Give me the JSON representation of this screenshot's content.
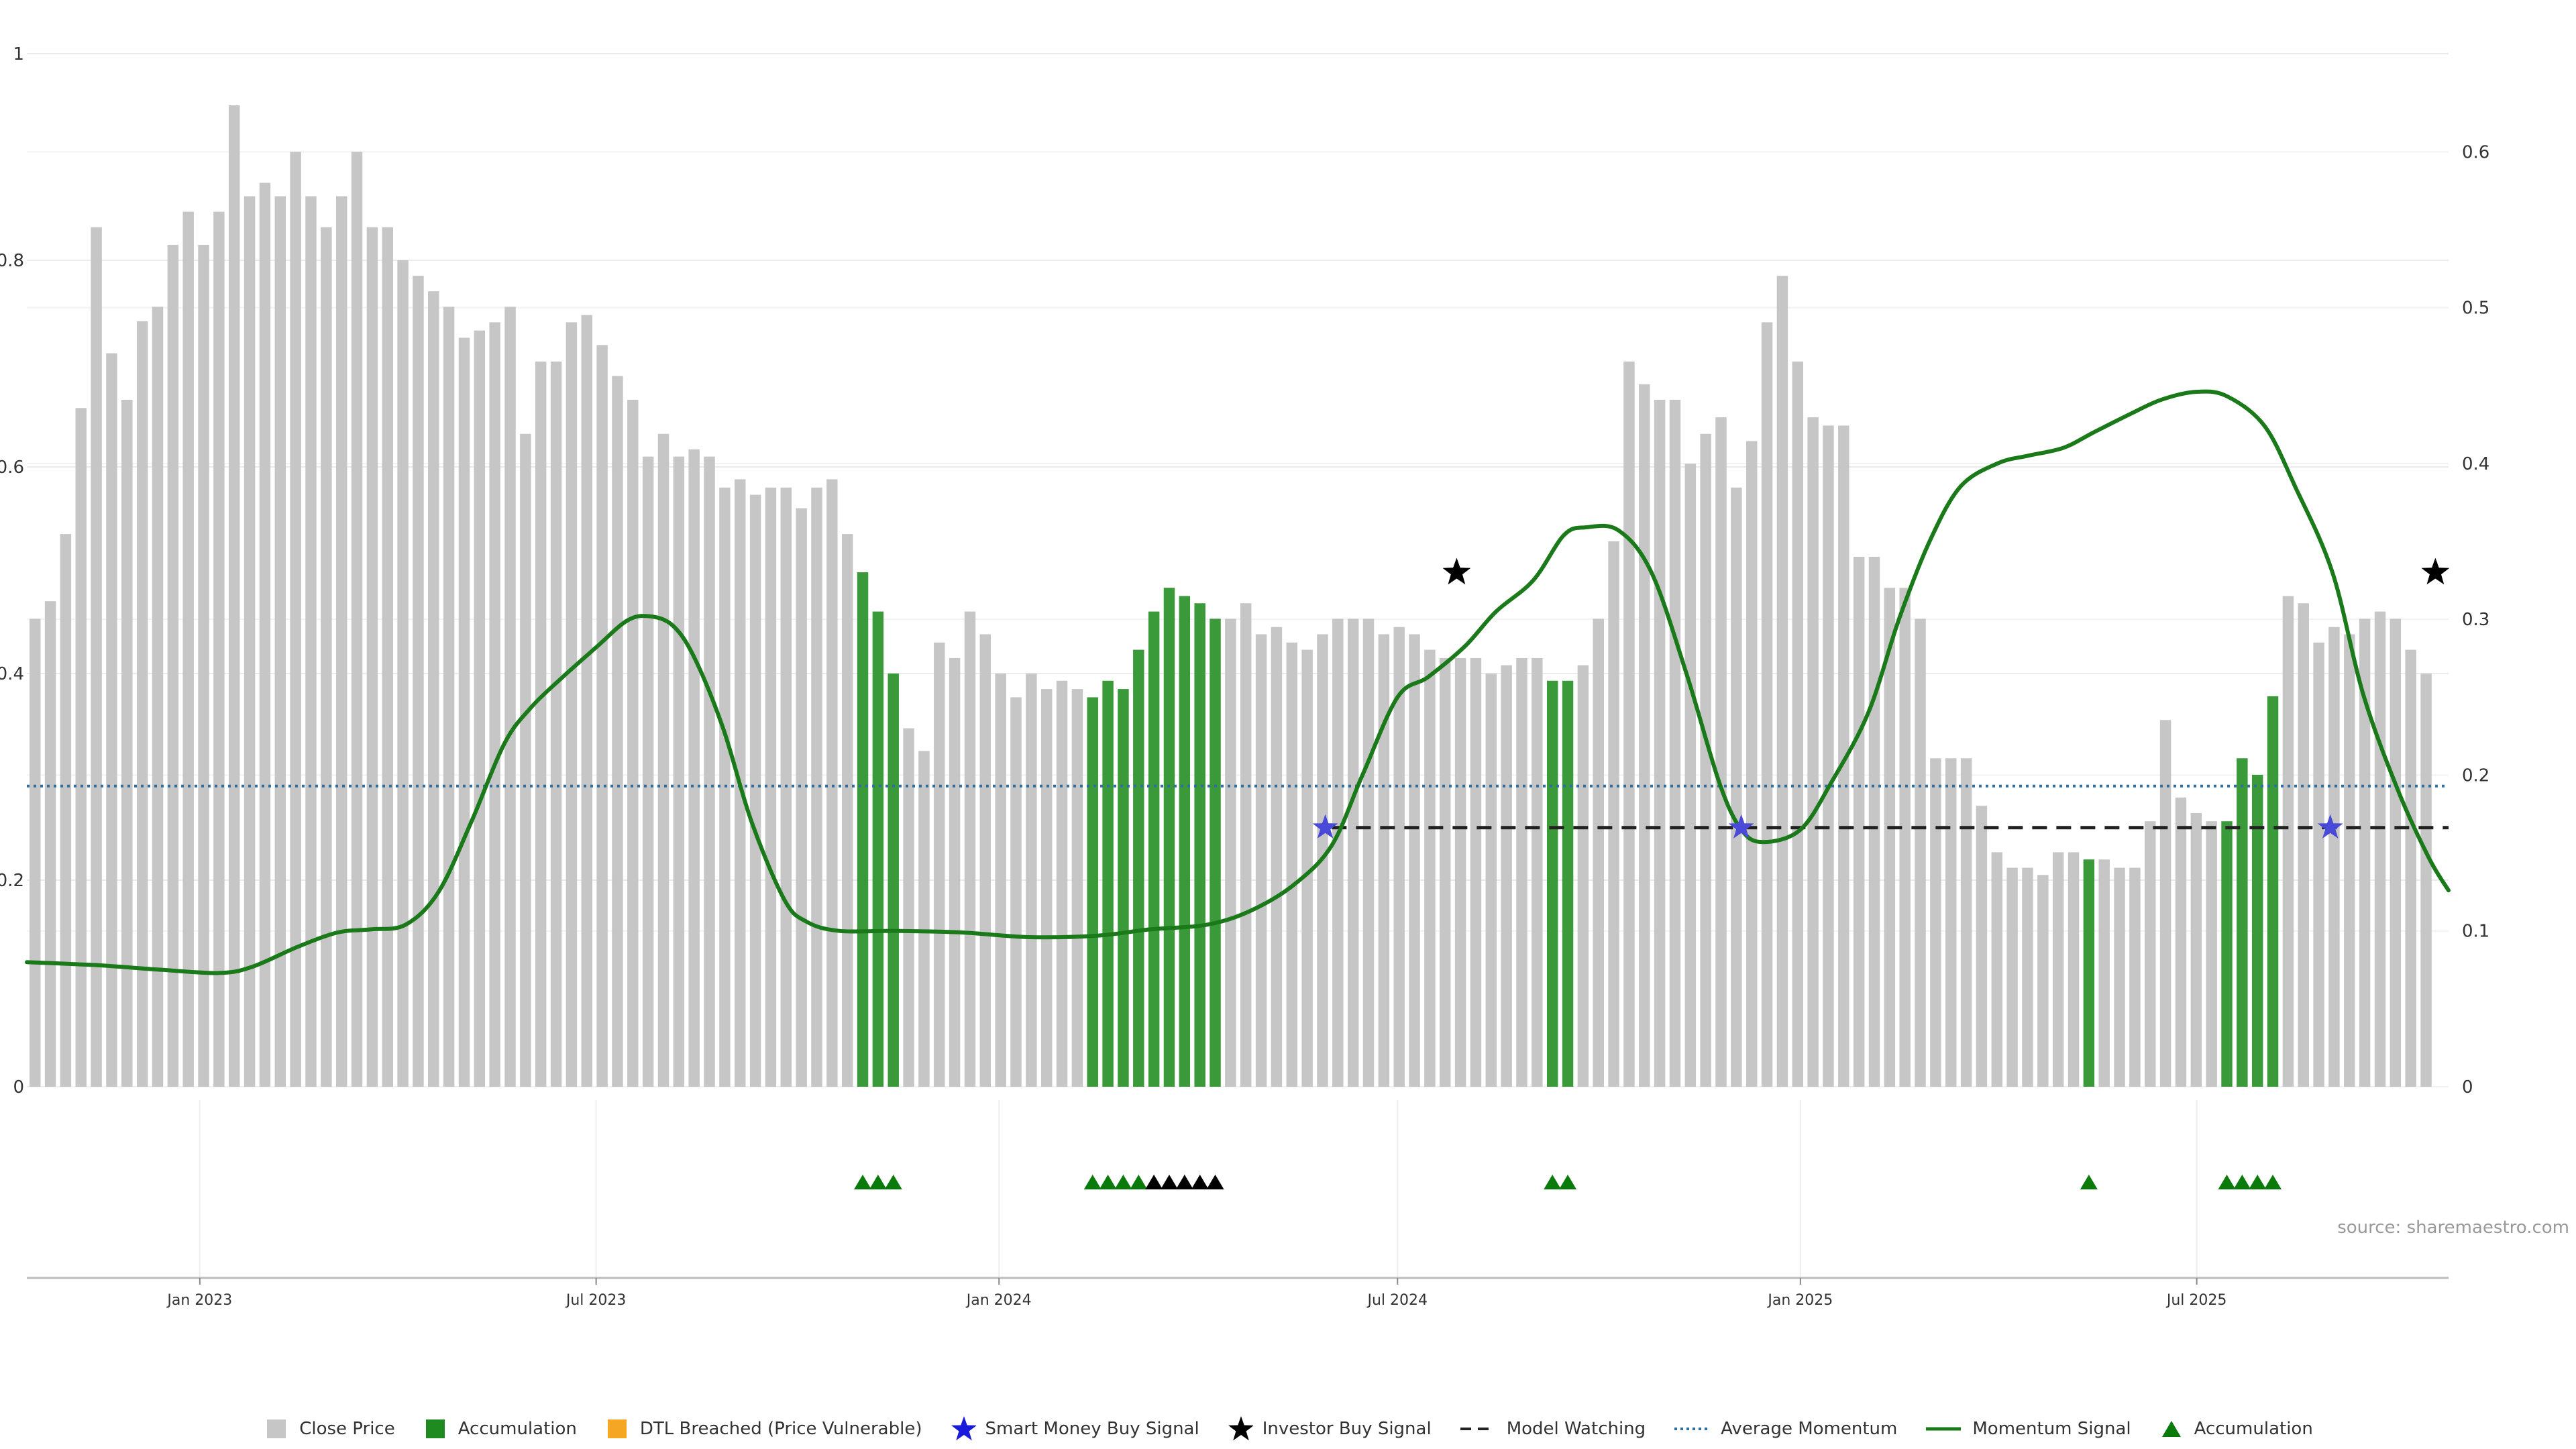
{
  "chart_data": {
    "type": "bar",
    "title": "",
    "source": "source: sharemaestro.com",
    "x_ticks": [
      "Jan 2023",
      "Jul 2023",
      "Jan 2024",
      "Jul 2024",
      "Jan 2025",
      "Jul 2025"
    ],
    "x_range": [
      "2022-10-14",
      "2025-10-24"
    ],
    "y_left": {
      "ticks": [
        "0",
        "0.2",
        "0.4",
        "0.6",
        "0.8",
        "1"
      ],
      "range": [
        0,
        1
      ]
    },
    "y_right": {
      "ticks": [
        "0",
        "0.1",
        "0.2",
        "0.3",
        "0.4",
        "0.5",
        "0.6"
      ],
      "range": [
        0,
        0.663
      ]
    },
    "grid": true,
    "legend_position": "bottom",
    "colors": {
      "close": "#c6c6c6",
      "accumulation": "#3a9a3a",
      "dtl": "#f5a623",
      "smart_money": "#1a1adb",
      "investor": "#000000",
      "momentum": "#1a7a1a",
      "average": "#2f6f9f",
      "watching": "#222222",
      "triangle_green": "#0a7a0a",
      "triangle_black": "#000000"
    },
    "legend": [
      {
        "label": "Close Price",
        "symbol": "square",
        "color": "#c6c6c6"
      },
      {
        "label": "Accumulation",
        "symbol": "square",
        "color": "#1f8a1f"
      },
      {
        "label": "DTL Breached (Price Vulnerable)",
        "symbol": "square",
        "color": "#f5a623"
      },
      {
        "label": "Smart Money Buy Signal",
        "symbol": "star",
        "color": "#1a1adb"
      },
      {
        "label": "Investor Buy Signal",
        "symbol": "star",
        "color": "#000000"
      },
      {
        "label": "Model Watching",
        "symbol": "dash",
        "color": "#222222"
      },
      {
        "label": "Average Momentum",
        "symbol": "dot",
        "color": "#2f6f9f"
      },
      {
        "label": "Momentum Signal",
        "symbol": "line",
        "color": "#1a7a1a"
      },
      {
        "label": "Accumulation",
        "symbol": "triangle",
        "color": "#0a7a0a"
      }
    ],
    "close_series": {
      "start_date": "2022-10-14",
      "step_days": 7,
      "values": [
        0.453,
        0.47,
        0.535,
        0.657,
        0.832,
        0.71,
        0.665,
        0.741,
        0.755,
        0.815,
        0.847,
        0.815,
        0.847,
        0.95,
        0.862,
        0.875,
        0.862,
        0.905,
        0.862,
        0.832,
        0.862,
        0.905,
        0.832,
        0.832,
        0.8,
        0.785,
        0.77,
        0.755,
        0.725,
        0.732,
        0.74,
        0.755,
        0.632,
        0.702,
        0.702,
        0.74,
        0.747,
        0.718,
        0.688,
        0.665,
        0.61,
        0.632,
        0.61,
        0.617,
        0.61,
        0.58,
        0.588,
        0.573,
        0.58,
        0.58,
        0.56,
        0.58,
        0.588,
        0.535,
        0.498,
        0.46,
        0.4,
        0.347,
        0.325,
        0.43,
        0.415,
        0.46,
        0.438,
        0.4,
        0.377,
        0.4,
        0.385,
        0.393,
        0.385,
        0.377,
        0.393,
        0.385,
        0.423,
        0.46,
        0.483,
        0.475,
        0.468,
        0.453,
        0.453,
        0.468,
        0.438,
        0.445,
        0.43,
        0.423,
        0.438,
        0.453,
        0.453,
        0.453,
        0.438,
        0.445,
        0.438,
        0.423,
        0.415,
        0.415,
        0.415,
        0.4,
        0.408,
        0.415,
        0.415,
        0.393,
        0.393,
        0.408,
        0.453,
        0.528,
        0.702,
        0.68,
        0.665,
        0.665,
        0.603,
        0.632,
        0.648,
        0.58,
        0.625,
        0.74,
        0.785,
        0.702,
        0.648,
        0.64,
        0.64,
        0.513,
        0.513,
        0.483,
        0.483,
        0.453,
        0.318,
        0.318,
        0.318,
        0.272,
        0.227,
        0.212,
        0.212,
        0.205,
        0.227,
        0.227,
        0.22,
        0.22,
        0.212,
        0.212,
        0.257,
        0.355,
        0.28,
        0.265,
        0.257,
        0.257,
        0.318,
        0.302,
        0.378,
        0.475,
        0.468,
        0.43,
        0.445,
        0.438,
        0.453,
        0.46,
        0.453,
        0.423,
        0.4
      ]
    },
    "accumulation_bars": [
      54,
      55,
      56,
      69,
      70,
      71,
      72,
      73,
      74,
      75,
      76,
      77,
      99,
      100,
      134,
      143,
      144,
      145,
      146
    ],
    "momentum_signal": {
      "points": [
        [
          "2022-10-14",
          0.08
        ],
        [
          "2022-11-15",
          0.078
        ],
        [
          "2022-12-15",
          0.075
        ],
        [
          "2023-01-10",
          0.073
        ],
        [
          "2023-01-25",
          0.077
        ],
        [
          "2023-02-15",
          0.09
        ],
        [
          "2023-03-05",
          0.099
        ],
        [
          "2023-03-20",
          0.101
        ],
        [
          "2023-04-05",
          0.104
        ],
        [
          "2023-04-20",
          0.125
        ],
        [
          "2023-05-05",
          0.17
        ],
        [
          "2023-05-20",
          0.22
        ],
        [
          "2023-06-01",
          0.243
        ],
        [
          "2023-06-15",
          0.262
        ],
        [
          "2023-07-01",
          0.282
        ],
        [
          "2023-07-15",
          0.299
        ],
        [
          "2023-07-25",
          0.302
        ],
        [
          "2023-08-05",
          0.296
        ],
        [
          "2023-08-15",
          0.275
        ],
        [
          "2023-08-28",
          0.23
        ],
        [
          "2023-09-10",
          0.17
        ],
        [
          "2023-09-25",
          0.12
        ],
        [
          "2023-10-05",
          0.106
        ],
        [
          "2023-10-20",
          0.1
        ],
        [
          "2023-11-15",
          0.1
        ],
        [
          "2023-12-15",
          0.099
        ],
        [
          "2024-01-15",
          0.096
        ],
        [
          "2024-02-15",
          0.097
        ],
        [
          "2024-03-10",
          0.101
        ],
        [
          "2024-04-05",
          0.104
        ],
        [
          "2024-04-25",
          0.113
        ],
        [
          "2024-05-15",
          0.13
        ],
        [
          "2024-06-01",
          0.155
        ],
        [
          "2024-06-15",
          0.2
        ],
        [
          "2024-07-01",
          0.25
        ],
        [
          "2024-07-15",
          0.263
        ],
        [
          "2024-08-01",
          0.283
        ],
        [
          "2024-08-15",
          0.305
        ],
        [
          "2024-09-01",
          0.325
        ],
        [
          "2024-09-15",
          0.354
        ],
        [
          "2024-09-25",
          0.359
        ],
        [
          "2024-10-10",
          0.357
        ],
        [
          "2024-10-25",
          0.33
        ],
        [
          "2024-11-10",
          0.265
        ],
        [
          "2024-11-25",
          0.195
        ],
        [
          "2024-12-05",
          0.165
        ],
        [
          "2024-12-15",
          0.157
        ],
        [
          "2025-01-01",
          0.165
        ],
        [
          "2025-01-15",
          0.195
        ],
        [
          "2025-02-01",
          0.24
        ],
        [
          "2025-02-15",
          0.3
        ],
        [
          "2025-03-01",
          0.35
        ],
        [
          "2025-03-15",
          0.385
        ],
        [
          "2025-04-01",
          0.4
        ],
        [
          "2025-04-15",
          0.405
        ],
        [
          "2025-05-01",
          0.41
        ],
        [
          "2025-05-15",
          0.42
        ],
        [
          "2025-06-01",
          0.432
        ],
        [
          "2025-06-15",
          0.441
        ],
        [
          "2025-07-01",
          0.446
        ],
        [
          "2025-07-15",
          0.443
        ],
        [
          "2025-08-01",
          0.424
        ],
        [
          "2025-08-15",
          0.385
        ],
        [
          "2025-09-01",
          0.33
        ],
        [
          "2025-09-15",
          0.252
        ],
        [
          "2025-10-01",
          0.19
        ],
        [
          "2025-10-15",
          0.147
        ],
        [
          "2025-10-24",
          0.126
        ]
      ]
    },
    "average_momentum": 0.193,
    "model_watching": {
      "from": "2024-06-01",
      "to": "2025-10-24",
      "value": 0.1663
    },
    "smart_money_signals": [
      [
        "2024-05-29",
        0.1663
      ],
      [
        "2024-12-05",
        0.1663
      ],
      [
        "2025-08-31",
        0.1663
      ]
    ],
    "investor_signals": [
      [
        "2024-07-28",
        0.33
      ],
      [
        "2025-10-18",
        0.33
      ]
    ],
    "triangles": {
      "green": [
        54,
        55,
        56,
        69,
        70,
        71,
        72,
        99,
        100,
        134,
        143,
        144,
        145,
        146
      ],
      "black": [
        73,
        74,
        75,
        76,
        77
      ]
    }
  }
}
